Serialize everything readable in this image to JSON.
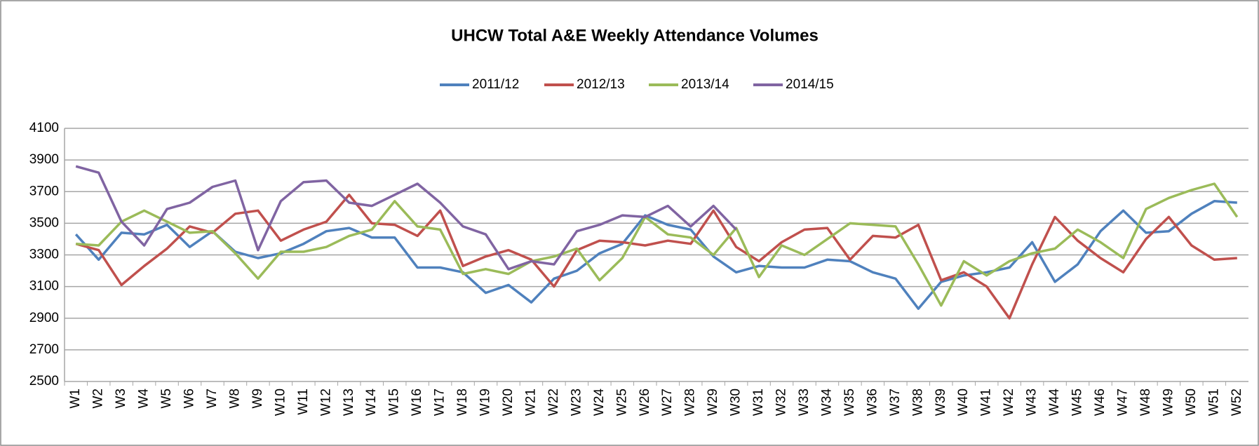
{
  "chart_data": {
    "type": "line",
    "title": "UHCW Total A&E Weekly Attendance Volumes",
    "categories": [
      "W1",
      "W2",
      "W3",
      "W4",
      "W5",
      "W6",
      "W7",
      "W8",
      "W9",
      "W10",
      "W11",
      "W12",
      "W13",
      "W14",
      "W15",
      "W16",
      "W17",
      "W18",
      "W19",
      "W20",
      "W21",
      "W22",
      "W23",
      "W24",
      "W25",
      "W26",
      "W27",
      "W28",
      "W29",
      "W30",
      "W31",
      "W32",
      "W33",
      "W34",
      "W35",
      "W36",
      "W37",
      "W38",
      "W39",
      "W40",
      "W41",
      "W42",
      "W43",
      "W44",
      "W45",
      "W46",
      "W47",
      "W48",
      "W49",
      "W50",
      "W51",
      "W52"
    ],
    "series": [
      {
        "name": "2011/12",
        "color": "#4f81bd",
        "values": [
          3430,
          3270,
          3440,
          3430,
          3490,
          3350,
          3450,
          3320,
          3280,
          3310,
          3370,
          3450,
          3470,
          3410,
          3410,
          3220,
          3220,
          3190,
          3060,
          3110,
          3000,
          3150,
          3200,
          3310,
          3370,
          3550,
          3490,
          3460,
          3290,
          3190,
          3230,
          3220,
          3220,
          3270,
          3260,
          3190,
          3150,
          2960,
          3130,
          3170,
          3190,
          3220,
          3380,
          3130,
          3240,
          3450,
          3580,
          3440,
          3450,
          3560,
          3640,
          3630
        ]
      },
      {
        "name": "2012/13",
        "color": "#c0504d",
        "values": [
          3370,
          3330,
          3110,
          3230,
          3340,
          3480,
          3440,
          3560,
          3580,
          3390,
          3460,
          3510,
          3680,
          3500,
          3490,
          3420,
          3580,
          3230,
          3290,
          3330,
          3270,
          3100,
          3330,
          3390,
          3380,
          3360,
          3390,
          3370,
          3580,
          3350,
          3260,
          3380,
          3460,
          3470,
          3270,
          3420,
          3410,
          3490,
          3140,
          3190,
          3100,
          2900,
          3240,
          3540,
          3390,
          3280,
          3190,
          3400,
          3540,
          3360,
          3270,
          3280
        ]
      },
      {
        "name": "2013/14",
        "color": "#9bbb59",
        "values": [
          3370,
          3360,
          3510,
          3580,
          3510,
          3440,
          3450,
          3310,
          3150,
          3320,
          3320,
          3350,
          3420,
          3460,
          3640,
          3480,
          3460,
          3180,
          3210,
          3180,
          3260,
          3290,
          3340,
          3140,
          3280,
          3540,
          3430,
          3410,
          3300,
          3470,
          3160,
          3360,
          3300,
          3400,
          3500,
          3490,
          3480,
          3240,
          2980,
          3260,
          3170,
          3260,
          3310,
          3340,
          3460,
          3380,
          3280,
          3590,
          3660,
          3710,
          3750,
          3540
        ]
      },
      {
        "name": "2014/15",
        "color": "#8064a2",
        "values": [
          3860,
          3820,
          3510,
          3360,
          3590,
          3630,
          3730,
          3770,
          3330,
          3640,
          3760,
          3770,
          3630,
          3610,
          3680,
          3750,
          3630,
          3480,
          3430,
          3210,
          3260,
          3240,
          3450,
          3490,
          3550,
          3540,
          3610,
          3480,
          3610,
          3460,
          null,
          null,
          null,
          null,
          null,
          null,
          null,
          null,
          null,
          null,
          null,
          null,
          null,
          null,
          null,
          null,
          null,
          null,
          null,
          null,
          null,
          null
        ]
      }
    ],
    "ylim": [
      2500,
      4100
    ],
    "yticks": [
      2500,
      2700,
      2900,
      3100,
      3300,
      3500,
      3700,
      3900,
      4100
    ],
    "grid": true,
    "legend": "top"
  }
}
